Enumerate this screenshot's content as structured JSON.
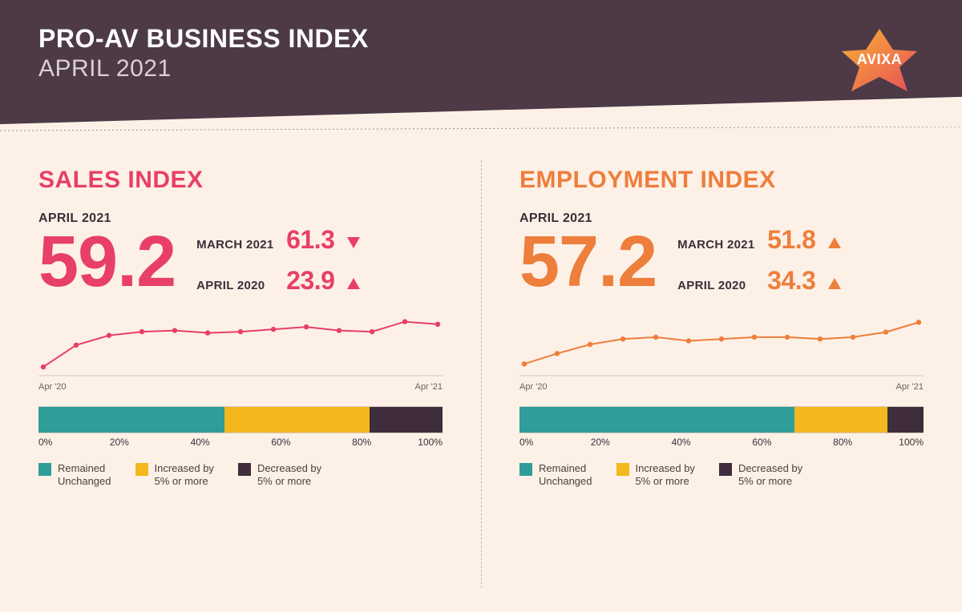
{
  "header": {
    "title": "PRO-AV BUSINESS INDEX",
    "subtitle": "APRIL 2021",
    "bg_color": "#4d3a46",
    "title_color": "#ffffff",
    "subtitle_color": "#d9cfd6",
    "logo_text": "AVIXA",
    "logo_star_fill_1": "#f9b233",
    "logo_star_fill_2": "#e84f5a",
    "logo_text_color": "#ffffff"
  },
  "page_bg": "#fdf1e7",
  "divider_color": "#c9bdb2",
  "panels": [
    {
      "key": "sales",
      "title": "SALES INDEX",
      "accent": "#e83f66",
      "current_month_label": "APRIL 2021",
      "current_value": "59.2",
      "compares": [
        {
          "label": "MARCH 2021",
          "value": "61.3",
          "direction": "down"
        },
        {
          "label": "APRIL 2020",
          "value": "23.9",
          "direction": "up"
        }
      ],
      "spark": {
        "type": "line",
        "x_start_label": "Apr '20",
        "x_end_label": "Apr '21",
        "ylim": [
          20,
          65
        ],
        "values": [
          23.9,
          42,
          50,
          53,
          54,
          52,
          53,
          55,
          57,
          54,
          53,
          61.3,
          59.2
        ],
        "line_color": "#e83f66",
        "marker_color": "#e83f66",
        "line_width": 2,
        "marker_radius": 3.2
      },
      "stack": {
        "type": "stacked-bar",
        "segments": [
          {
            "label": "Remained\nUnchanged",
            "pct": 46,
            "color": "#2f9d98"
          },
          {
            "label": "Increased by\n5% or more",
            "pct": 36,
            "color": "#f4b71e"
          },
          {
            "label": "Decreased by\n5% or more",
            "pct": 18,
            "color": "#3f2d3b"
          }
        ],
        "ticks": [
          "0%",
          "20%",
          "40%",
          "60%",
          "80%",
          "100%"
        ]
      }
    },
    {
      "key": "employment",
      "title": "EMPLOYMENT INDEX",
      "accent": "#ee7e3c",
      "current_month_label": "APRIL 2021",
      "current_value": "57.2",
      "compares": [
        {
          "label": "MARCH 2021",
          "value": "51.8",
          "direction": "up"
        },
        {
          "label": "APRIL 2020",
          "value": "34.3",
          "direction": "up"
        }
      ],
      "spark": {
        "type": "line",
        "x_start_label": "Apr '20",
        "x_end_label": "Apr '21",
        "ylim": [
          30,
          60
        ],
        "values": [
          34.3,
          40,
          45,
          48,
          49,
          47,
          48,
          49,
          49,
          48,
          49,
          51.8,
          57.2
        ],
        "line_color": "#ee7e3c",
        "marker_color": "#ee7e3c",
        "line_width": 2,
        "marker_radius": 3.2
      },
      "stack": {
        "type": "stacked-bar",
        "segments": [
          {
            "label": "Remained\nUnchanged",
            "pct": 68,
            "color": "#2f9d98"
          },
          {
            "label": "Increased by\n5% or more",
            "pct": 23,
            "color": "#f4b71e"
          },
          {
            "label": "Decreased by\n5% or more",
            "pct": 9,
            "color": "#3f2d3b"
          }
        ],
        "ticks": [
          "0%",
          "20%",
          "40%",
          "60%",
          "80%",
          "100%"
        ]
      }
    }
  ],
  "legend_text_color": "#4a3e38",
  "tick_text_color": "#3a2f38"
}
